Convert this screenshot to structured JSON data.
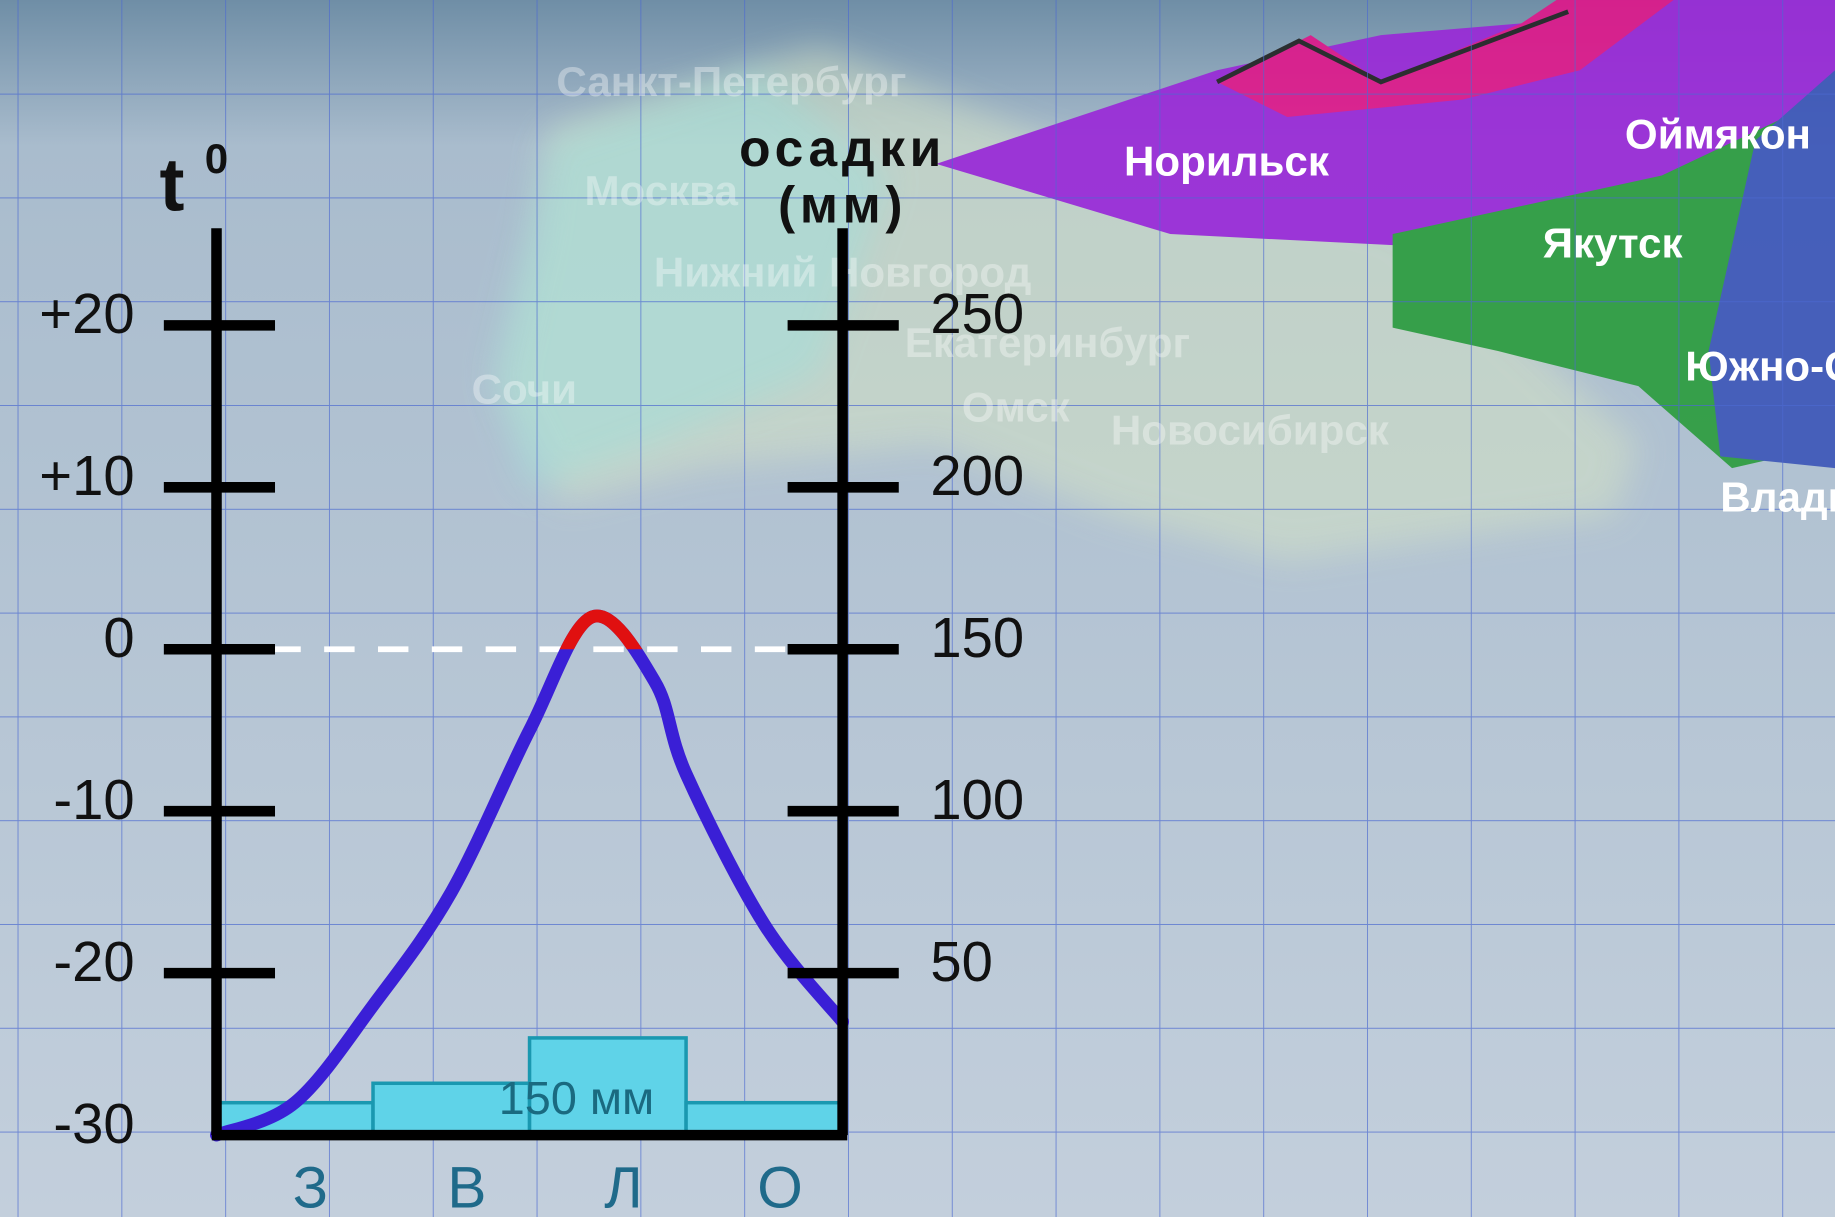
{
  "chart_data": {
    "type": "climatogram",
    "ylabel": "t",
    "ylabel_superscript": "0",
    "y2label": [
      "осадки",
      "(мм)"
    ],
    "categories": [
      "З",
      "В",
      "Л",
      "О"
    ],
    "ylim": [
      -30,
      26
    ],
    "yticks": [
      {
        "value": 20,
        "label": "+20"
      },
      {
        "value": 10,
        "label": "+10"
      },
      0,
      -10,
      -20,
      -30
    ],
    "y2lim": [
      0,
      280
    ],
    "y2ticks": [
      250,
      200,
      150,
      100,
      50
    ],
    "xlim": [
      0,
      4
    ],
    "temperature": {
      "x": [
        0,
        0.5,
        1,
        1.5,
        2,
        2.4,
        2.8,
        3,
        3.5,
        4
      ],
      "values": [
        -30,
        -28,
        -22,
        -15,
        -5,
        2,
        -2,
        -7.7,
        -17,
        -23
      ],
      "color": "#3a1fd6",
      "above_zero_color": "#e01010"
    },
    "reference_line": 0,
    "precipitation": {
      "values": [
        10,
        16,
        30,
        10
      ],
      "color": "#5fd3e8",
      "edge_color": "#1a98b0",
      "axis": "y2"
    },
    "annotation": "150 мм"
  },
  "map": {
    "cities": [
      "Санкт-Петербург",
      "Москва",
      "Нижний Новгород",
      "Сочи",
      "Екатеринбург",
      "Омск",
      "Новосибирск",
      "Норильск",
      "Оймякон",
      "Якутск",
      "Южно-Сахалинск",
      "Владивосток"
    ]
  }
}
